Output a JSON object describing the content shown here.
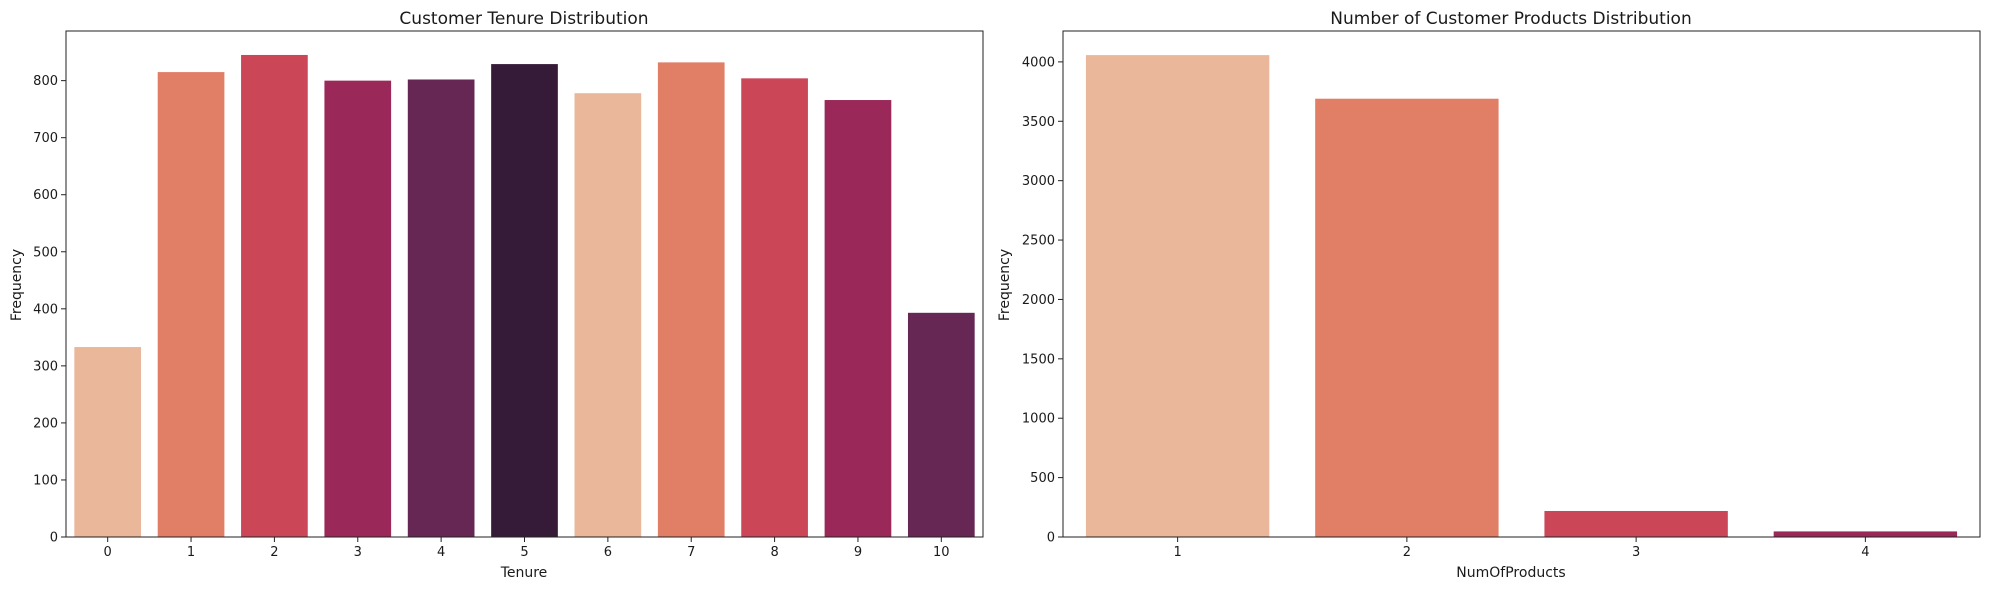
{
  "chart_data": [
    {
      "type": "bar",
      "title": "Customer Tenure Distribution",
      "xlabel": "Tenure",
      "ylabel": "Frequency",
      "categories": [
        "0",
        "1",
        "2",
        "3",
        "4",
        "5",
        "6",
        "7",
        "8",
        "9",
        "10"
      ],
      "values": [
        333,
        815,
        845,
        800,
        802,
        829,
        778,
        832,
        804,
        766,
        393
      ],
      "colors": [
        "#EAB79B",
        "#E17F66",
        "#CB4757",
        "#9A295A",
        "#662754",
        "#361B38",
        "#EAB79B",
        "#E17F66",
        "#CB4757",
        "#9A295A",
        "#662754"
      ],
      "ylim": [
        0,
        887
      ],
      "yticks": [
        0,
        100,
        200,
        300,
        400,
        500,
        600,
        700,
        800
      ],
      "grid": false,
      "legend": false
    },
    {
      "type": "bar",
      "title": "Number of Customer Products Distribution",
      "xlabel": "NumOfProducts",
      "ylabel": "Frequency",
      "categories": [
        "1",
        "2",
        "3",
        "4"
      ],
      "values": [
        4057,
        3690,
        219,
        47
      ],
      "colors": [
        "#EAB79B",
        "#E17F66",
        "#CB4757",
        "#9A295A"
      ],
      "ylim": [
        0,
        4260
      ],
      "yticks": [
        0,
        500,
        1000,
        1500,
        2000,
        2500,
        3000,
        3500,
        4000
      ],
      "grid": false,
      "legend": false
    }
  ]
}
